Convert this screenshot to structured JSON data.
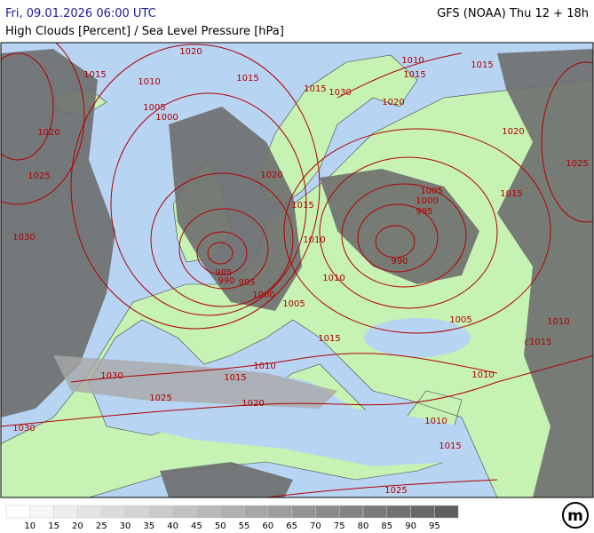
{
  "header": {
    "datetime": "Fri, 09.01.2026 06:00 UTC",
    "model": "GFS (NOAA) Thu 12 + 18h",
    "subtitle": "High Clouds [Percent] / Sea Level Pressure [hPa]"
  },
  "isobar_labels": [
    "1020",
    "1010",
    "1015",
    "1015",
    "1015",
    "1010",
    "1015",
    "1015",
    "1030",
    "1020",
    "1005",
    "1000",
    "1020",
    "1020",
    "1025",
    "1020",
    "1025",
    "1005",
    "1015",
    "1000",
    "1015",
    "995",
    "1030",
    "1010",
    "990",
    "985",
    "990",
    "995",
    "1000",
    "1010",
    "1005",
    "1005",
    "1010",
    "c1015",
    "1015",
    "1010",
    "1030",
    "1015",
    "1010",
    "1025",
    "1020",
    "1010",
    "1030",
    "1015",
    "1025"
  ],
  "legend": {
    "labels": [
      10,
      15,
      20,
      25,
      30,
      35,
      40,
      45,
      50,
      55,
      60,
      65,
      70,
      75,
      80,
      85,
      90,
      95
    ]
  },
  "logo_text": "m"
}
